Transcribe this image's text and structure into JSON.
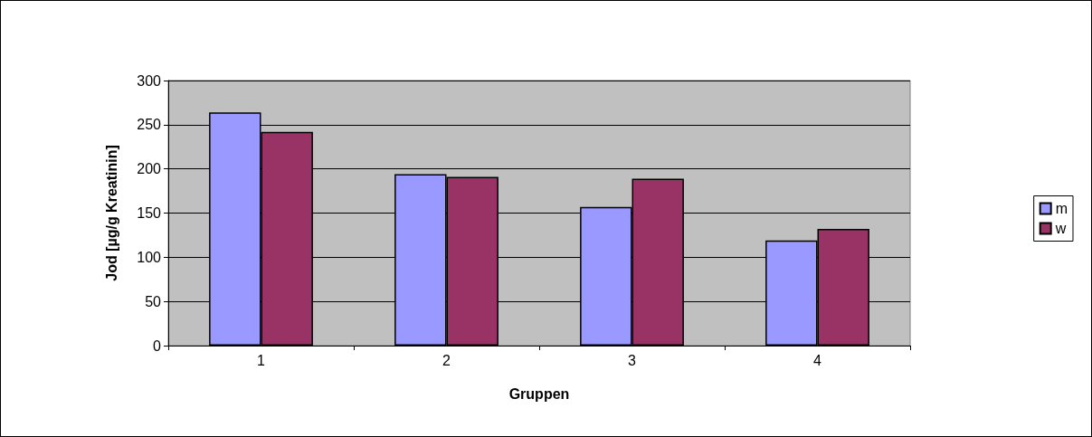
{
  "chart_data": {
    "type": "bar",
    "xlabel": "Gruppen",
    "ylabel": "Jod [µg/g Kreatinin]",
    "categories": [
      "1",
      "2",
      "3",
      "4"
    ],
    "series": [
      {
        "name": "m",
        "color": "#9999ff",
        "values": [
          264,
          194,
          157,
          119
        ]
      },
      {
        "name": "w",
        "color": "#993366",
        "values": [
          242,
          191,
          189,
          132
        ]
      }
    ],
    "ylim": [
      0,
      300
    ],
    "yticks": [
      0,
      50,
      100,
      150,
      200,
      250,
      300
    ],
    "grid": "y",
    "legend": "right"
  }
}
